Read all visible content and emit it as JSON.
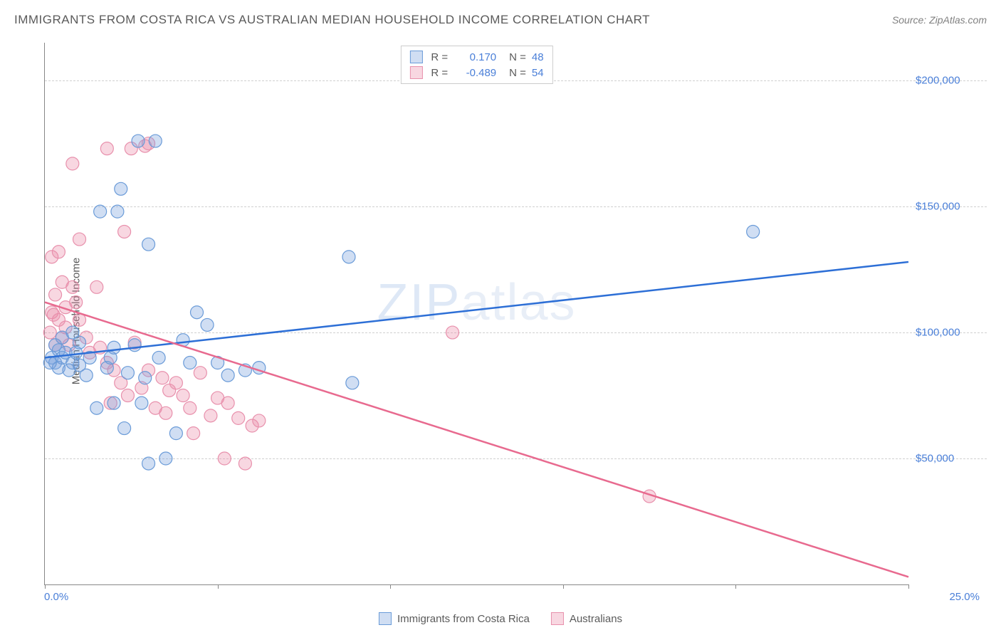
{
  "header": {
    "title": "IMMIGRANTS FROM COSTA RICA VS AUSTRALIAN MEDIAN HOUSEHOLD INCOME CORRELATION CHART",
    "source": "Source: ZipAtlas.com"
  },
  "watermark": "ZIPatlas",
  "chart": {
    "type": "scatter",
    "y_axis_label": "Median Household Income",
    "xlim": [
      0,
      25
    ],
    "ylim": [
      0,
      215000
    ],
    "x_min_label": "0.0%",
    "x_max_label": "25.0%",
    "y_ticks": [
      50000,
      100000,
      150000,
      200000
    ],
    "y_tick_labels": [
      "$50,000",
      "$100,000",
      "$150,000",
      "$200,000"
    ],
    "x_ticks": [
      0,
      5,
      10,
      15,
      20,
      25
    ],
    "grid_color": "#d0d0d0",
    "axis_color": "#888888",
    "tick_label_color": "#4a7fd8",
    "background_color": "#ffffff",
    "series": [
      {
        "name": "Immigrants from Costa Rica",
        "fill_color": "rgba(120,160,220,0.35)",
        "stroke_color": "#6a9bd8",
        "line_color": "#2d6fd6",
        "marker_radius": 9,
        "line_width": 2.5,
        "regression": {
          "r": "0.170",
          "n": "48",
          "y_at_x0": 90000,
          "y_at_x25": 128000
        },
        "points": [
          [
            0.2,
            90000
          ],
          [
            0.3,
            95000
          ],
          [
            0.3,
            88000
          ],
          [
            0.4,
            86000
          ],
          [
            0.4,
            93000
          ],
          [
            0.5,
            98000
          ],
          [
            0.5,
            90000
          ],
          [
            0.6,
            92000
          ],
          [
            0.7,
            85000
          ],
          [
            0.8,
            100000
          ],
          [
            0.8,
            88000
          ],
          [
            0.9,
            92000
          ],
          [
            1.0,
            87000
          ],
          [
            1.0,
            96000
          ],
          [
            1.2,
            83000
          ],
          [
            1.3,
            90000
          ],
          [
            1.5,
            70000
          ],
          [
            1.6,
            148000
          ],
          [
            1.8,
            86000
          ],
          [
            1.9,
            90000
          ],
          [
            2.0,
            72000
          ],
          [
            2.0,
            94000
          ],
          [
            2.1,
            148000
          ],
          [
            2.2,
            157000
          ],
          [
            2.3,
            62000
          ],
          [
            2.4,
            84000
          ],
          [
            2.6,
            95000
          ],
          [
            2.7,
            176000
          ],
          [
            2.8,
            72000
          ],
          [
            2.9,
            82000
          ],
          [
            3.0,
            48000
          ],
          [
            3.0,
            135000
          ],
          [
            3.2,
            176000
          ],
          [
            3.3,
            90000
          ],
          [
            3.5,
            50000
          ],
          [
            3.8,
            60000
          ],
          [
            4.0,
            97000
          ],
          [
            4.2,
            88000
          ],
          [
            4.4,
            108000
          ],
          [
            4.7,
            103000
          ],
          [
            5.0,
            88000
          ],
          [
            5.3,
            83000
          ],
          [
            5.8,
            85000
          ],
          [
            6.2,
            86000
          ],
          [
            8.8,
            130000
          ],
          [
            8.9,
            80000
          ],
          [
            20.5,
            140000
          ],
          [
            0.15,
            88000
          ]
        ]
      },
      {
        "name": "Australians",
        "fill_color": "rgba(235,140,170,0.35)",
        "stroke_color": "#e890ac",
        "line_color": "#e86a8f",
        "marker_radius": 9,
        "line_width": 2.5,
        "regression": {
          "r": "-0.489",
          "n": "54",
          "y_at_x0": 112000,
          "y_at_x25": 3000
        },
        "points": [
          [
            0.2,
            108000
          ],
          [
            0.2,
            130000
          ],
          [
            0.3,
            95000
          ],
          [
            0.3,
            115000
          ],
          [
            0.4,
            105000
          ],
          [
            0.4,
            132000
          ],
          [
            0.5,
            98000
          ],
          [
            0.5,
            120000
          ],
          [
            0.6,
            110000
          ],
          [
            0.6,
            102000
          ],
          [
            0.7,
            95000
          ],
          [
            0.8,
            118000
          ],
          [
            0.8,
            167000
          ],
          [
            0.9,
            112000
          ],
          [
            1.0,
            105000
          ],
          [
            1.0,
            137000
          ],
          [
            1.2,
            98000
          ],
          [
            1.3,
            92000
          ],
          [
            1.5,
            118000
          ],
          [
            1.6,
            94000
          ],
          [
            1.8,
            88000
          ],
          [
            1.8,
            173000
          ],
          [
            1.9,
            72000
          ],
          [
            2.0,
            85000
          ],
          [
            2.2,
            80000
          ],
          [
            2.3,
            140000
          ],
          [
            2.4,
            75000
          ],
          [
            2.5,
            173000
          ],
          [
            2.6,
            96000
          ],
          [
            2.8,
            78000
          ],
          [
            2.9,
            174000
          ],
          [
            3.0,
            85000
          ],
          [
            3.0,
            175000
          ],
          [
            3.2,
            70000
          ],
          [
            3.4,
            82000
          ],
          [
            3.5,
            68000
          ],
          [
            3.6,
            77000
          ],
          [
            3.8,
            80000
          ],
          [
            4.0,
            75000
          ],
          [
            4.2,
            70000
          ],
          [
            4.3,
            60000
          ],
          [
            4.5,
            84000
          ],
          [
            4.8,
            67000
          ],
          [
            5.0,
            74000
          ],
          [
            5.2,
            50000
          ],
          [
            5.3,
            72000
          ],
          [
            5.6,
            66000
          ],
          [
            5.8,
            48000
          ],
          [
            6.0,
            63000
          ],
          [
            6.2,
            65000
          ],
          [
            11.8,
            100000
          ],
          [
            17.5,
            35000
          ],
          [
            0.15,
            100000
          ],
          [
            0.25,
            107000
          ]
        ]
      }
    ]
  },
  "legend_top": {
    "r_label": "R =",
    "n_label": "N ="
  },
  "legend_bottom": {
    "items": [
      "Immigrants from Costa Rica",
      "Australians"
    ]
  }
}
